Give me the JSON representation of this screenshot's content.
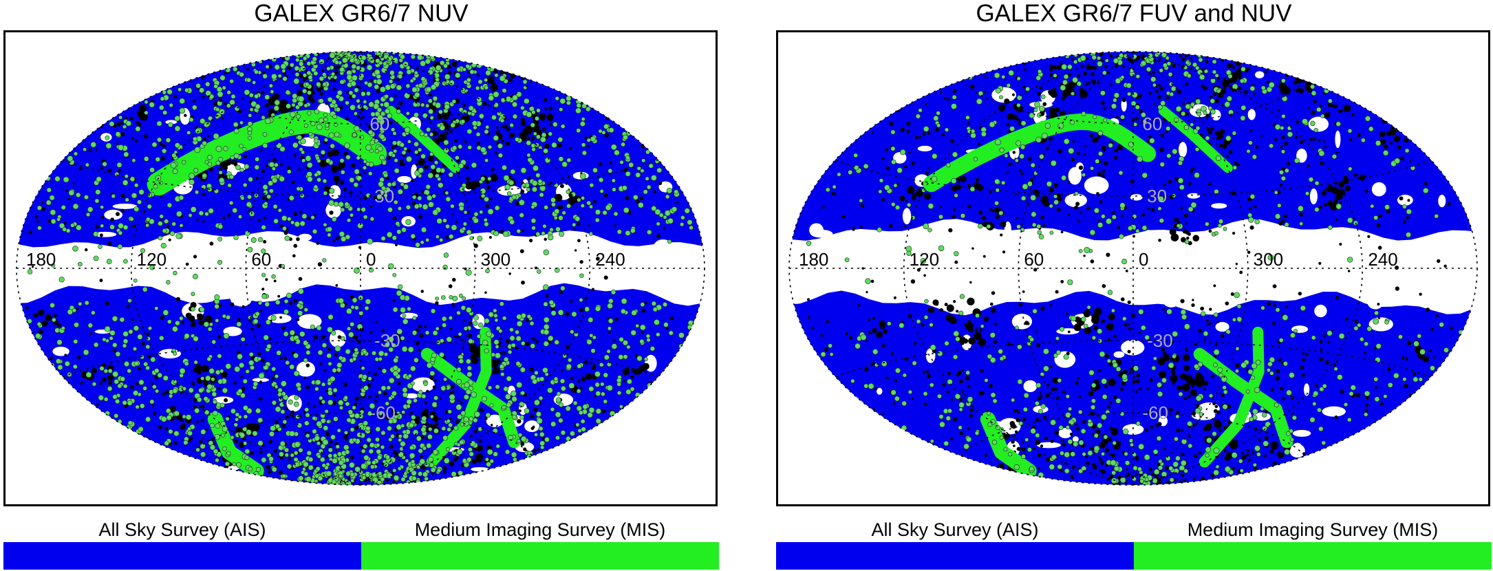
{
  "colors": {
    "ais": "#0000ee",
    "mis": "#22ee22",
    "mis_dot": "#5cdc5c",
    "black": "#000000",
    "grid": "#000000",
    "lat_label": "#a9a9c8"
  },
  "panels": [
    {
      "title": "GALEX GR6/7 NUV",
      "legend": {
        "ais_label": "All Sky Survey (AIS)",
        "mis_label": "Medium Imaging Survey (MIS)"
      },
      "map": {
        "projection": "aitoff",
        "grid_lon": [
          180,
          120,
          60,
          0,
          300,
          240
        ],
        "grid_lat": [
          60,
          30,
          -30,
          -60
        ],
        "lon_labels": [
          "180",
          "120",
          "60",
          "0",
          "300",
          "240"
        ],
        "lat_labels": [
          "60",
          "30",
          "-30",
          "-60"
        ],
        "galactic_plane_gap_deg": 12,
        "mis_density": "high"
      }
    },
    {
      "title": "GALEX GR6/7 FUV and NUV",
      "legend": {
        "ais_label": "All Sky Survey (AIS)",
        "mis_label": "Medium Imaging Survey (MIS)"
      },
      "map": {
        "projection": "aitoff",
        "grid_lon": [
          180,
          120,
          60,
          0,
          300,
          240
        ],
        "grid_lat": [
          60,
          30,
          -30,
          -60
        ],
        "lon_labels": [
          "180",
          "120",
          "60",
          "0",
          "300",
          "240"
        ],
        "lat_labels": [
          "60",
          "30",
          "-30",
          "-60"
        ],
        "galactic_plane_gap_deg": 16,
        "mis_density": "medium"
      }
    }
  ]
}
